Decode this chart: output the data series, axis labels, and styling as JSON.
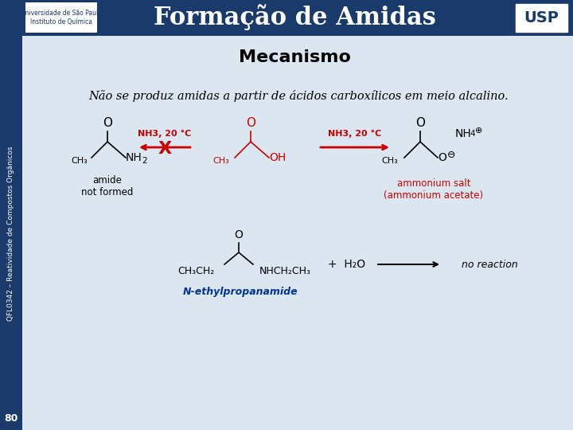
{
  "title": "Formação de Amidas",
  "subtitle": "Mecanismo",
  "italic_text": "Não se produz amidas a partir de ácidos carboxílicos em meio alcalino.",
  "page_number": "80",
  "sidebar_text": "QFL0342 – Reatividade de Compostos Orgânicos",
  "header_bg": "#1a3a6b",
  "header_text_color": "#ffffff",
  "slide_bg": "#dce6f0",
  "content_bg": "#f0f4f8",
  "red_color": "#cc0000",
  "blue_color": "#003399",
  "black_color": "#000000",
  "label_amide": "amide\nnot formed",
  "label_salt": "ammonium salt\n(ammonium acetate)",
  "nh3_label": "NH3, 20 °C",
  "n_ethyl_label": "N-ethylpropanamide",
  "no_reaction": "no reaction"
}
